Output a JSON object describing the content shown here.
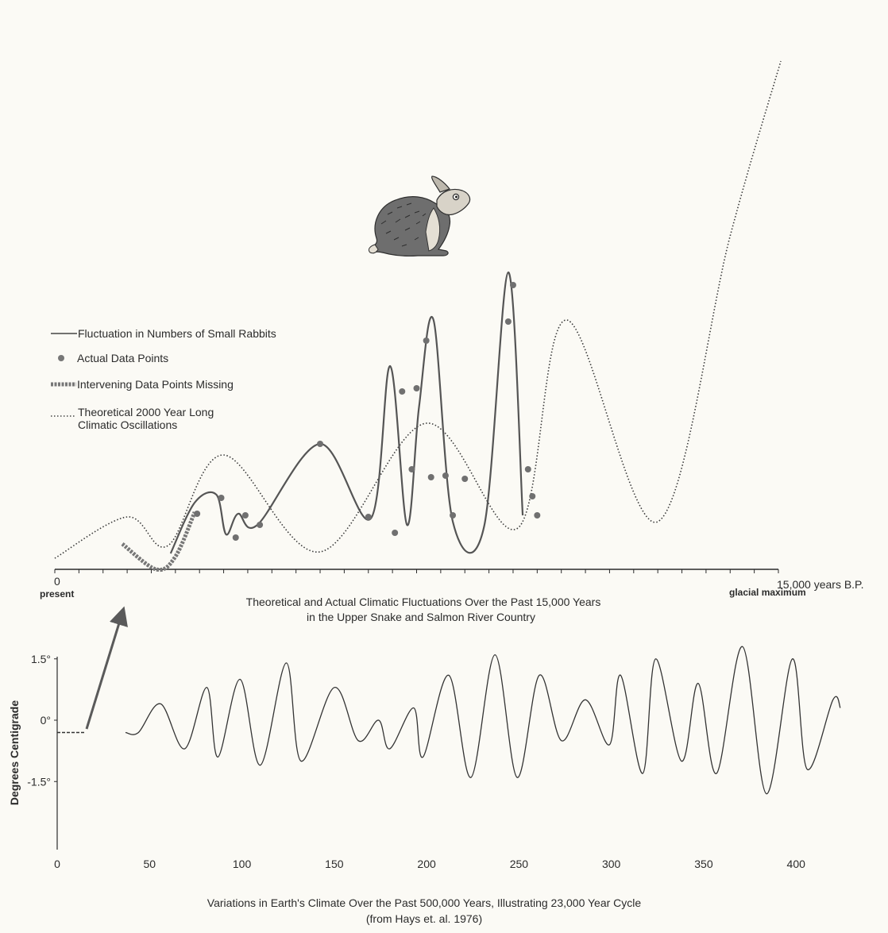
{
  "chart_data": [
    {
      "type": "line",
      "title": "Theoretical and Actual Climatic Fluctuations Over the Past 15,000 Years",
      "subtitle": "in the Upper Snake and Salmon River Country",
      "x_start_label": "0",
      "x_start_sublabel": "present",
      "x_end_label": "15,000 years B.P.",
      "x_end_sublabel": "glacial maximum",
      "xlim": [
        0,
        15000
      ],
      "legend_position": "left",
      "legend": [
        {
          "marker": "line",
          "text": "Fluctuation in Numbers of Small Rabbits"
        },
        {
          "marker": "dot",
          "text": "Actual Data Points"
        },
        {
          "marker": "thick-dashed",
          "text": "Intervening Data Points Missing"
        },
        {
          "marker": "dotted",
          "text": "Theoretical 2000 Year Long"
        },
        {
          "marker": "none",
          "text": "Climatic Oscillations"
        }
      ],
      "illustration": "rabbit",
      "series": [
        {
          "name": "Theoretical 2000 Year Long Climatic Oscillations",
          "style": "dotted",
          "x": [
            0,
            1500,
            2350,
            3500,
            5500,
            7700,
            9600,
            10600,
            12500,
            14000,
            15050
          ],
          "y": [
            0.07,
            0.33,
            0.15,
            0.72,
            0.11,
            0.92,
            0.26,
            1.57,
            0.3,
            2.1,
            3.2
          ]
        },
        {
          "name": "Fluctuation in Numbers of Small Rabbits",
          "style": "solid",
          "x": [
            2400,
            2900,
            3350,
            3550,
            3800,
            4200,
            5500,
            6550,
            6950,
            7300,
            7550,
            7850,
            8250,
            8900,
            9400,
            9700
          ],
          "y": [
            0.1,
            0.42,
            0.47,
            0.22,
            0.35,
            0.28,
            0.79,
            0.32,
            1.28,
            0.28,
            1.02,
            1.57,
            0.3,
            0.27,
            1.87,
            0.34
          ]
        },
        {
          "name": "Intervening Data Points Missing",
          "style": "thick-dashed",
          "x": [
            1400,
            2100,
            2500,
            2900
          ],
          "y": [
            0.16,
            0.0,
            0.08,
            0.36
          ]
        }
      ],
      "points": {
        "name": "Actual Data Points",
        "x": [
          2950,
          3450,
          3750,
          3950,
          4250,
          5500,
          6500,
          7050,
          7200,
          7400,
          7500,
          7700,
          7800,
          8100,
          8250,
          8500,
          9400,
          9500,
          9810,
          9900,
          10000
        ],
        "y": [
          0.35,
          0.45,
          0.2,
          0.34,
          0.28,
          0.79,
          0.33,
          0.23,
          1.12,
          0.63,
          1.14,
          1.44,
          0.58,
          0.59,
          0.34,
          0.57,
          1.56,
          1.79,
          0.63,
          0.46,
          0.34
        ]
      }
    },
    {
      "type": "line",
      "title": "Variations in Earth's Climate Over the Past 500,000 Years, Illustrating 23,000 Year Cycle",
      "subtitle": "(from Hays et. al. 1976)",
      "ylabel": "Degrees Centigrade",
      "xlim": [
        0,
        430
      ],
      "ylim": [
        -3.7,
        2.2
      ],
      "x_ticks": [
        "0",
        "50",
        "100",
        "150",
        "200",
        "250",
        "300",
        "350",
        "400"
      ],
      "y_ticks": [
        {
          "value": 1.5,
          "label": "1.5°"
        },
        {
          "value": 0,
          "label": "0°"
        },
        {
          "value": -1.5,
          "label": "-1.5°"
        }
      ],
      "series": [
        {
          "name": "",
          "style": "solid",
          "x": [
            37,
            44,
            56,
            69,
            81,
            87,
            99,
            110,
            124,
            132,
            150,
            163,
            174,
            180,
            193,
            198,
            212,
            224,
            237,
            249,
            261,
            273,
            286,
            299,
            305,
            317,
            324,
            338,
            347,
            357,
            371,
            384,
            398,
            406,
            420,
            424
          ],
          "y": [
            -0.3,
            -0.3,
            0.4,
            -0.7,
            0.8,
            -0.9,
            1.0,
            -1.1,
            1.4,
            -1.0,
            0.8,
            -0.5,
            0.0,
            -0.7,
            0.3,
            -0.9,
            1.1,
            -1.4,
            1.6,
            -1.4,
            1.1,
            -0.5,
            0.5,
            -0.6,
            1.1,
            -1.3,
            1.5,
            -1.0,
            0.9,
            -1.3,
            1.8,
            -1.8,
            1.5,
            -1.2,
            0.5,
            0.3
          ]
        },
        {
          "name": "",
          "style": "dashed",
          "x": [
            0,
            15
          ],
          "y": [
            -0.3,
            -0.3
          ]
        }
      ]
    }
  ]
}
